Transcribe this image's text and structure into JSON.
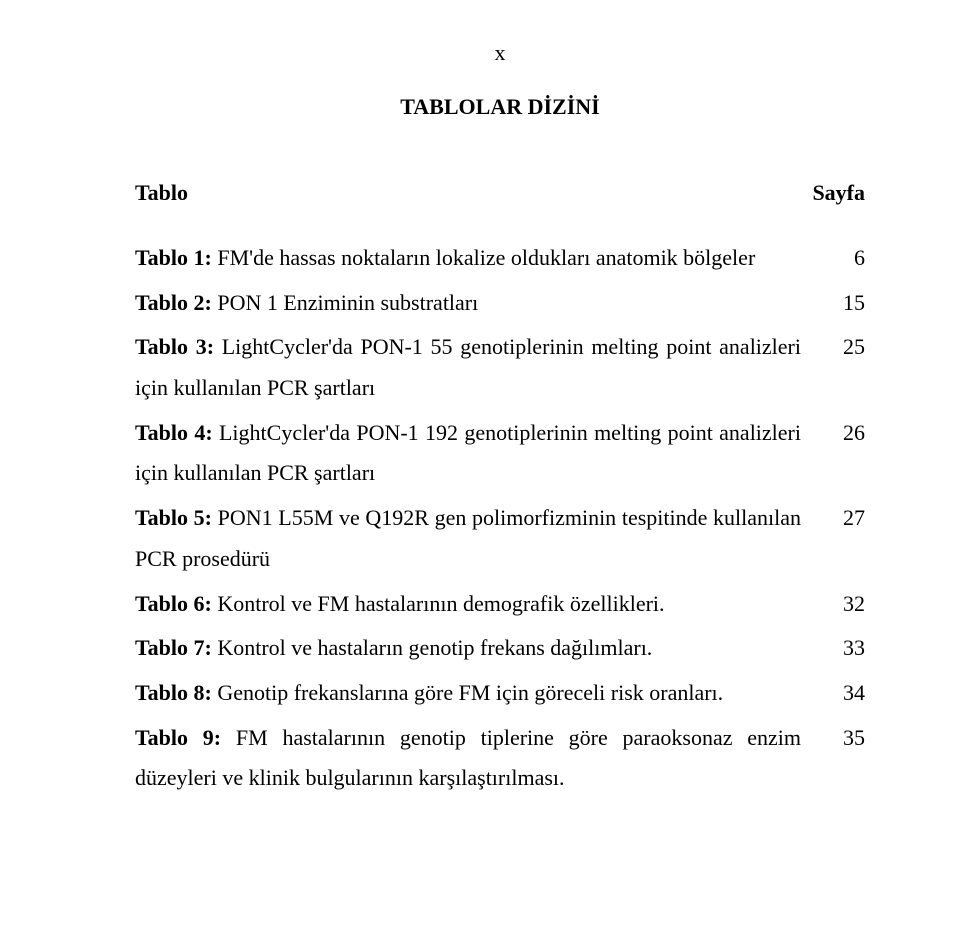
{
  "page_marker": "x",
  "title": "TABLOLAR DİZİNİ",
  "col_left": "Tablo",
  "col_right": "Sayfa",
  "entries": [
    {
      "label": "Tablo 1:",
      "text": " FM'de hassas noktaların lokalize oldukları anatomik bölgeler",
      "page": "6"
    },
    {
      "label": "Tablo 2:",
      "text": " PON 1 Enziminin substratları",
      "page": "15"
    },
    {
      "label": "Tablo 3:",
      "text": " LightCycler'da PON-1 55 genotiplerinin melting point analizleri için kullanılan PCR şartları",
      "page": "25"
    },
    {
      "label": "Tablo 4:",
      "text": " LightCycler'da PON-1 192 genotiplerinin melting point analizleri için kullanılan PCR şartları",
      "page": "26"
    },
    {
      "label": "Tablo 5:",
      "text": " PON1 L55M ve Q192R gen polimorfizminin tespitinde kullanılan PCR prosedürü",
      "page": "27"
    },
    {
      "label": "Tablo 6:",
      "text": " Kontrol ve FM hastalarının demografik özellikleri.",
      "page": "32"
    },
    {
      "label": "Tablo 7:",
      "text": " Kontrol ve hastaların genotip frekans dağılımları.",
      "page": "33"
    },
    {
      "label": "Tablo 8:",
      "text": " Genotip frekanslarına göre FM için göreceli risk oranları.",
      "page": "34"
    },
    {
      "label": "Tablo 9:",
      "text": " FM hastalarının genotip tiplerine göre paraoksonaz enzim düzeyleri ve klinik bulgularının karşılaştırılması.",
      "page": "35"
    }
  ]
}
